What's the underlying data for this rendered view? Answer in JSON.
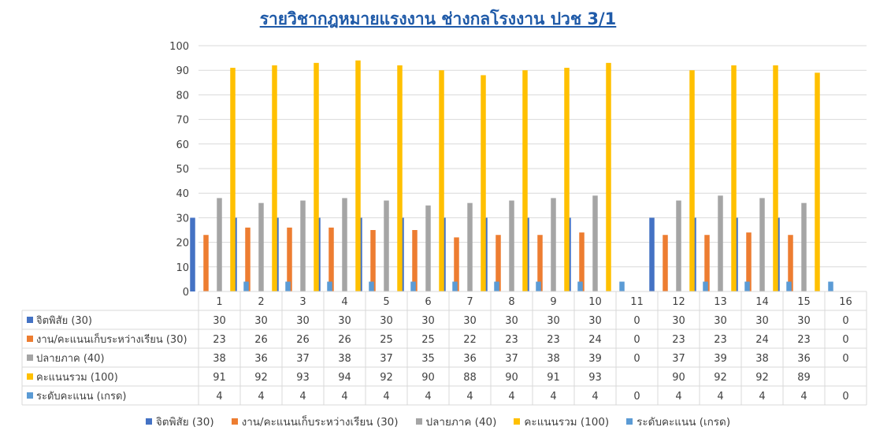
{
  "chart_data": {
    "type": "bar",
    "title": "รายวิชากฎหมายแรงงาน ช่างกลโรงงาน ปวช 3/1",
    "categories": [
      "1",
      "2",
      "3",
      "4",
      "5",
      "6",
      "7",
      "8",
      "9",
      "10",
      "11",
      "12",
      "13",
      "14",
      "15",
      "16"
    ],
    "ylim": [
      0,
      100
    ],
    "yticks": [
      0,
      10,
      20,
      30,
      40,
      50,
      60,
      70,
      80,
      90,
      100
    ],
    "grid": true,
    "legend_position": "bottom",
    "data_table": true,
    "series": [
      {
        "name": "จิตพิสัย (30)",
        "color": "#4472c4",
        "values": [
          30,
          30,
          30,
          30,
          30,
          30,
          30,
          30,
          30,
          30,
          0,
          30,
          30,
          30,
          30,
          0
        ],
        "table": [
          "30",
          "30",
          "30",
          "30",
          "30",
          "30",
          "30",
          "30",
          "30",
          "30",
          "0",
          "30",
          "30",
          "30",
          "30",
          "0"
        ]
      },
      {
        "name": "งาน/คะแนนเก็บระหว่างเรียน (30)",
        "color": "#ed7d31",
        "values": [
          23,
          26,
          26,
          26,
          25,
          25,
          22,
          23,
          23,
          24,
          0,
          23,
          23,
          24,
          23,
          0
        ],
        "table": [
          "23",
          "26",
          "26",
          "26",
          "25",
          "25",
          "22",
          "23",
          "23",
          "24",
          "0",
          "23",
          "23",
          "24",
          "23",
          "0"
        ]
      },
      {
        "name": "ปลายภาค (40)",
        "color": "#a5a5a5",
        "values": [
          38,
          36,
          37,
          38,
          37,
          35,
          36,
          37,
          38,
          39,
          0,
          37,
          39,
          38,
          36,
          0
        ],
        "table": [
          "38",
          "36",
          "37",
          "38",
          "37",
          "35",
          "36",
          "37",
          "38",
          "39",
          "0",
          "37",
          "39",
          "38",
          "36",
          "0"
        ]
      },
      {
        "name": "คะแนนรวม (100)",
        "color": "#ffc000",
        "values": [
          91,
          92,
          93,
          94,
          92,
          90,
          88,
          90,
          91,
          93,
          null,
          90,
          92,
          92,
          89,
          null
        ],
        "table": [
          "91",
          "92",
          "93",
          "94",
          "92",
          "90",
          "88",
          "90",
          "91",
          "93",
          "",
          "90",
          "92",
          "92",
          "89",
          ""
        ]
      },
      {
        "name": "ระดับคะแนน (เกรด)",
        "color": "#5b9bd5",
        "values": [
          4,
          4,
          4,
          4,
          4,
          4,
          4,
          4,
          4,
          4,
          0,
          4,
          4,
          4,
          4,
          0
        ],
        "table": [
          "4",
          "4",
          "4",
          "4",
          "4",
          "4",
          "4",
          "4",
          "4",
          "4",
          "0",
          "4",
          "4",
          "4",
          "4",
          "0"
        ]
      }
    ]
  }
}
